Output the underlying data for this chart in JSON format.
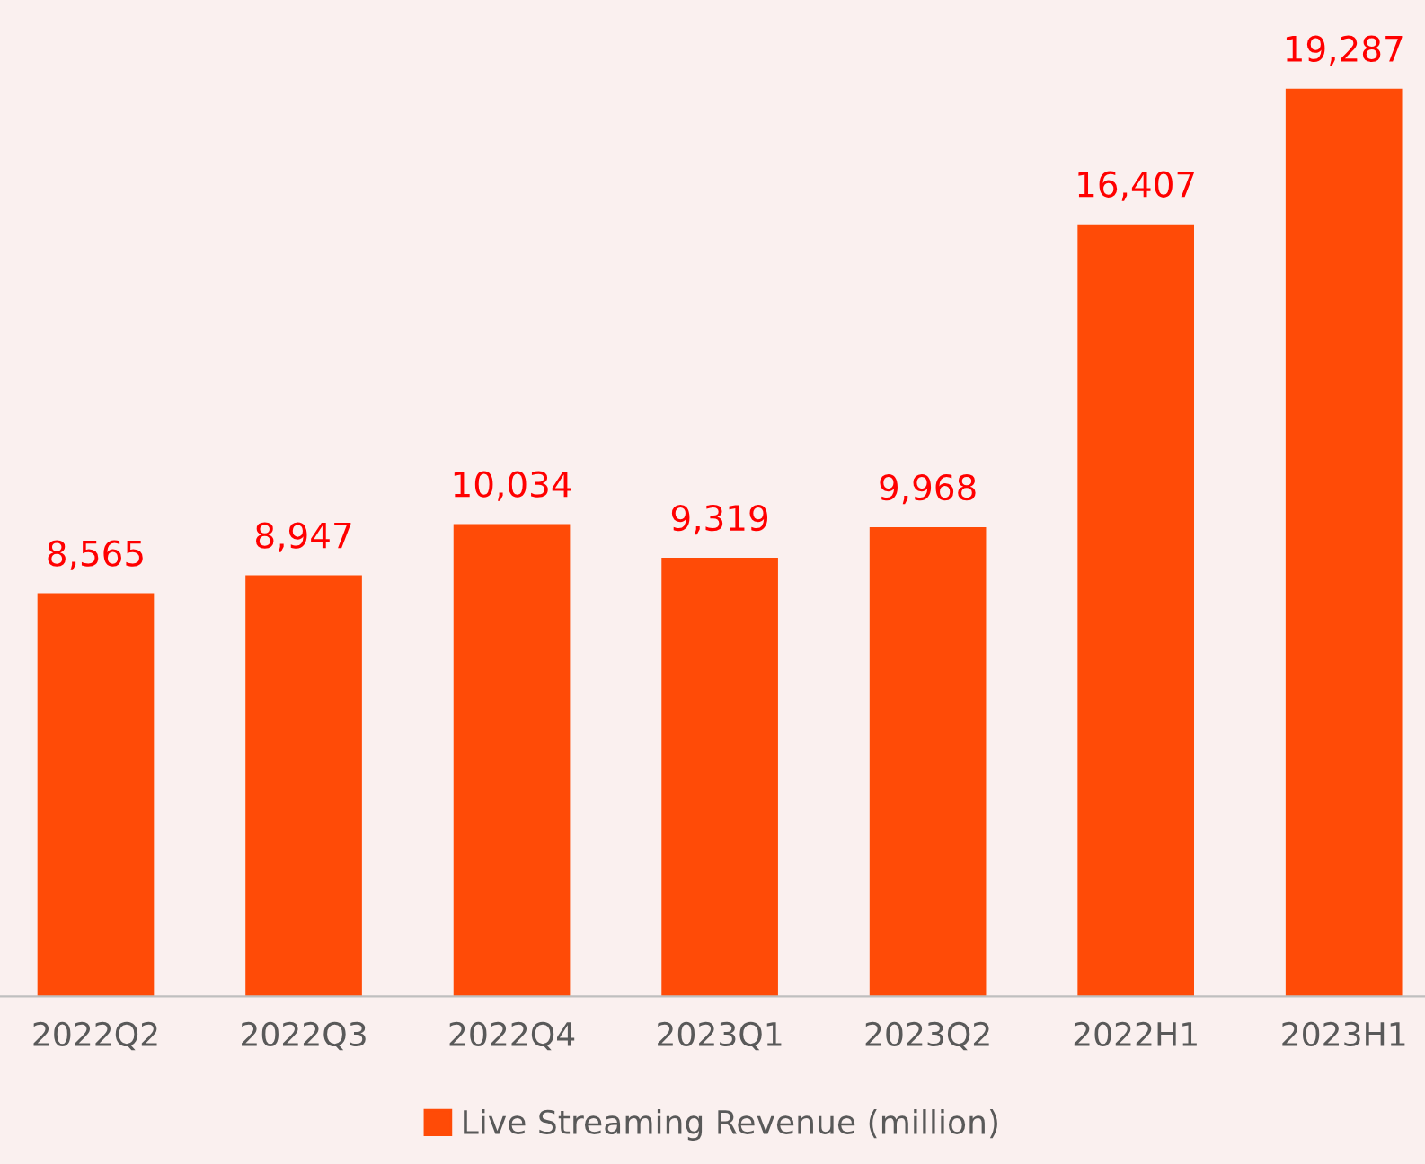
{
  "chart_data": {
    "type": "bar",
    "categories": [
      "2022Q2",
      "2022Q3",
      "2022Q4",
      "2023Q1",
      "2023Q2",
      "2022H1",
      "2023H1"
    ],
    "series": [
      {
        "name": "Live Streaming Revenue (million)",
        "color": "#ff4b07",
        "values": [
          8565,
          8947,
          10034,
          9319,
          9968,
          16407,
          19287
        ],
        "value_labels": [
          "8,565",
          "8,947",
          "10,034",
          "9,319",
          "9,968",
          "16,407",
          "19,287"
        ]
      }
    ],
    "legend": "bottom",
    "grid": false
  }
}
